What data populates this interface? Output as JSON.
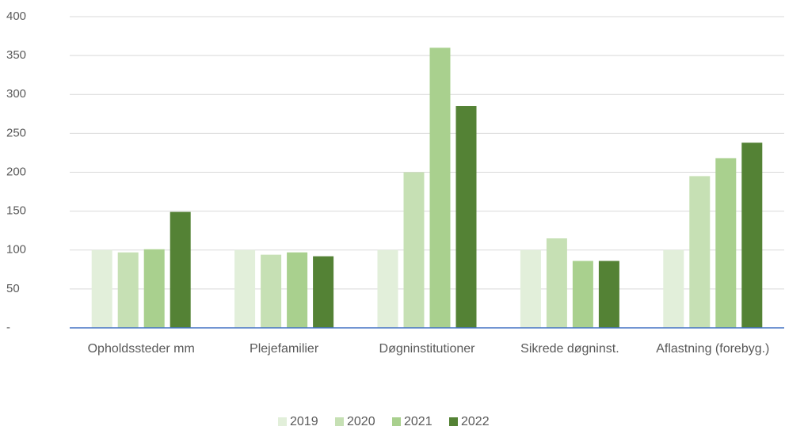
{
  "chart_data": {
    "type": "bar",
    "categories": [
      "Opholdssteder mm",
      "Plejefamilier",
      "Døgninstitutioner",
      "Sikrede døgninst.",
      "Aflastning (forebyg.)"
    ],
    "series": [
      {
        "name": "2019",
        "color": "#e2efda",
        "values": [
          100,
          100,
          100,
          100,
          100
        ]
      },
      {
        "name": "2020",
        "color": "#c6e0b4",
        "values": [
          97,
          94,
          200,
          115,
          195
        ]
      },
      {
        "name": "2021",
        "color": "#a9d08e",
        "values": [
          101,
          97,
          360,
          86,
          218
        ]
      },
      {
        "name": "2022",
        "color": "#548235",
        "values": [
          149,
          92,
          285,
          86,
          238
        ]
      }
    ],
    "ylim": [
      0,
      400
    ],
    "yticks": [
      {
        "value": 0,
        "label": "-"
      },
      50,
      100,
      150,
      200,
      250,
      300,
      350,
      400
    ],
    "grid": true
  }
}
